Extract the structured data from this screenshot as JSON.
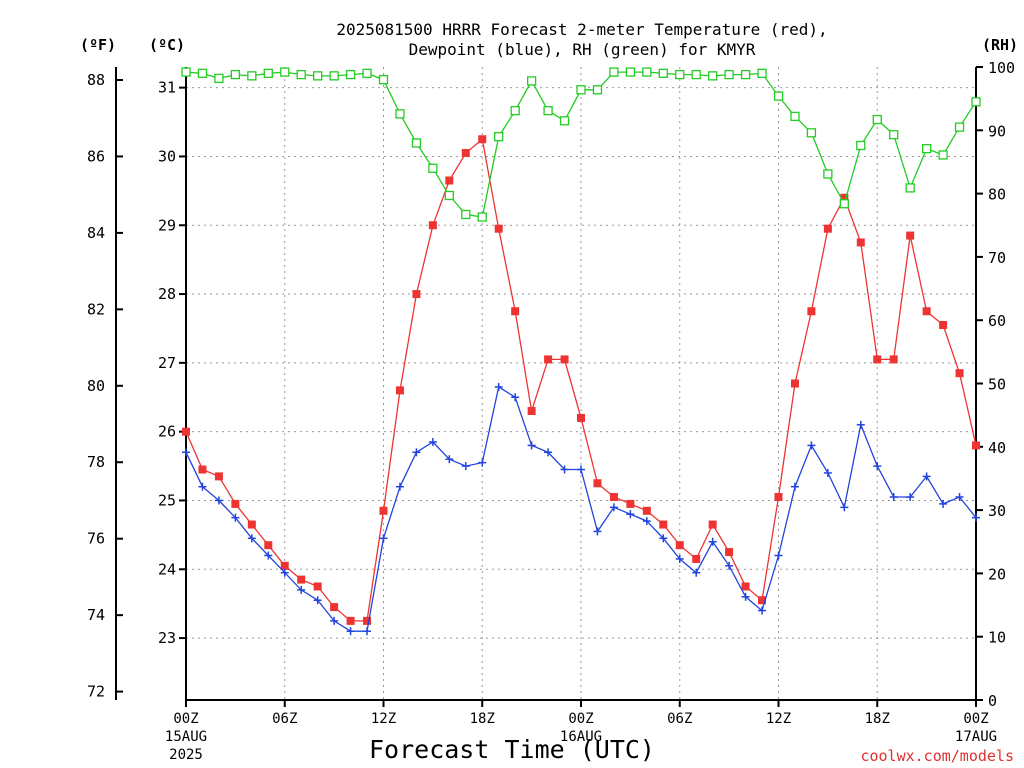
{
  "title_line1": "2025081500 HRRR Forecast 2-meter Temperature (red),",
  "title_line2": "Dewpoint (blue), RH (green) for KMYR",
  "unit_f": "(ºF)",
  "unit_c": "(ºC)",
  "unit_rh": "(RH)",
  "credit": "coolwx.com/models",
  "chart_data": {
    "type": "line",
    "xlabel": "Forecast Time (UTC)",
    "x_hours": [
      0,
      1,
      2,
      3,
      4,
      5,
      6,
      7,
      8,
      9,
      10,
      11,
      12,
      13,
      14,
      15,
      16,
      17,
      18,
      19,
      20,
      21,
      22,
      23,
      24,
      25,
      26,
      27,
      28,
      29,
      30,
      31,
      32,
      33,
      34,
      35,
      36,
      37,
      38,
      39,
      40,
      41,
      42,
      43,
      44,
      45,
      46,
      47,
      48
    ],
    "xlim": [
      0,
      48
    ],
    "x_ticks": [
      {
        "hour": 0,
        "label": "00Z",
        "sub1": "15AUG",
        "sub2": "2025"
      },
      {
        "hour": 6,
        "label": "06Z"
      },
      {
        "hour": 12,
        "label": "12Z"
      },
      {
        "hour": 18,
        "label": "18Z"
      },
      {
        "hour": 24,
        "label": "00Z",
        "sub1": "16AUG"
      },
      {
        "hour": 30,
        "label": "06Z"
      },
      {
        "hour": 36,
        "label": "12Z"
      },
      {
        "hour": 42,
        "label": "18Z"
      },
      {
        "hour": 48,
        "label": "00Z",
        "sub1": "17AUG"
      }
    ],
    "y_left_f": {
      "label": "(ºF)",
      "ticks": [
        72,
        74,
        76,
        78,
        80,
        82,
        84,
        86,
        88
      ]
    },
    "y_left_c": {
      "label": "(ºC)",
      "lim": [
        22.1,
        31.3
      ],
      "ticks": [
        23,
        24,
        25,
        26,
        27,
        28,
        29,
        30,
        31
      ]
    },
    "y_right_rh": {
      "label": "(RH)",
      "lim": [
        0,
        100
      ],
      "ticks": [
        0,
        10,
        20,
        30,
        40,
        50,
        60,
        70,
        80,
        90,
        100
      ]
    },
    "grid": true,
    "series": [
      {
        "name": "Temperature",
        "axis": "celsius",
        "color": "#ee3333",
        "marker": "filled-square",
        "values": [
          26.0,
          25.45,
          25.35,
          24.95,
          24.65,
          24.35,
          24.05,
          23.85,
          23.75,
          23.45,
          23.25,
          23.25,
          24.85,
          26.6,
          28.0,
          29.0,
          29.65,
          30.05,
          30.25,
          28.95,
          27.75,
          26.3,
          27.05,
          27.05,
          26.2,
          25.25,
          25.05,
          24.95,
          24.85,
          24.65,
          24.35,
          24.15,
          24.65,
          24.25,
          23.75,
          23.55,
          25.05,
          26.7,
          27.75,
          28.95,
          29.4,
          28.75,
          27.05,
          27.05,
          28.85,
          27.75,
          27.55,
          26.85,
          25.8
        ]
      },
      {
        "name": "Dewpoint",
        "axis": "celsius",
        "color": "#2244dd",
        "marker": "plus",
        "values": [
          25.7,
          25.2,
          25.0,
          24.75,
          24.45,
          24.2,
          23.95,
          23.7,
          23.55,
          23.25,
          23.1,
          23.1,
          24.45,
          25.2,
          25.7,
          25.85,
          25.6,
          25.5,
          25.55,
          26.65,
          26.5,
          25.8,
          25.7,
          25.45,
          25.45,
          24.55,
          24.9,
          24.8,
          24.7,
          24.45,
          24.15,
          23.95,
          24.4,
          24.05,
          23.6,
          23.4,
          24.2,
          25.2,
          25.8,
          25.4,
          24.9,
          26.1,
          25.5,
          25.05,
          25.05,
          25.35,
          24.95,
          25.05,
          24.75
        ]
      },
      {
        "name": "RH",
        "axis": "rh",
        "color": "#22cc22",
        "marker": "open-square",
        "values": [
          99.2,
          99.0,
          98.2,
          98.8,
          98.6,
          99.0,
          99.2,
          98.8,
          98.6,
          98.6,
          98.8,
          99.0,
          98.0,
          92.6,
          88.0,
          84.0,
          79.7,
          76.7,
          76.3,
          89.0,
          93.1,
          97.8,
          93.1,
          91.5,
          96.4,
          96.4,
          99.2,
          99.2,
          99.2,
          99.0,
          98.8,
          98.8,
          98.6,
          98.8,
          98.8,
          99.0,
          95.4,
          92.2,
          89.6,
          83.1,
          78.4,
          87.6,
          91.7,
          89.3,
          80.9,
          87.1,
          86.1,
          90.5,
          94.5
        ]
      }
    ]
  }
}
